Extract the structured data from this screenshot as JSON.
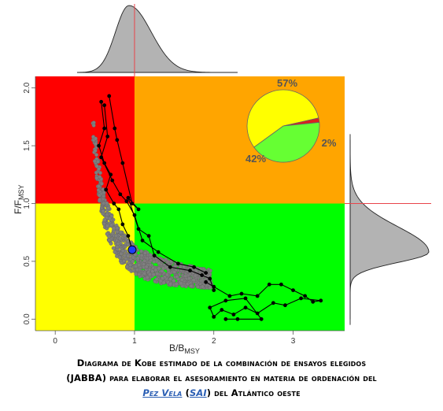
{
  "chart_data": {
    "type": "scatter",
    "title": "",
    "xlabel": "B/B",
    "xlabel_sub": "MSY",
    "ylabel": "F/F",
    "ylabel_sub": "MSY",
    "xlim": [
      -0.25,
      3.65
    ],
    "ylim": [
      -0.1,
      2.1
    ],
    "x_ticks": [
      "0",
      "1",
      "2",
      "3"
    ],
    "y_ticks": [
      "0.0",
      "0.5",
      "1.0",
      "1.5",
      "2.0"
    ],
    "grid": false,
    "quadrants": {
      "upper_left": "#ff0000",
      "upper_right": "#ffa500",
      "lower_left": "#ffff00",
      "lower_right": "#00ff00"
    },
    "reference_lines": {
      "x": 1.0,
      "y": 1.0,
      "color": "#e8444a"
    },
    "current_point": {
      "x": 0.97,
      "y": 0.6,
      "color": "#1a3cff"
    },
    "trajectory_a": [
      [
        0.58,
        1.88
      ],
      [
        0.62,
        1.65
      ],
      [
        0.55,
        1.5
      ],
      [
        0.62,
        1.35
      ],
      [
        0.7,
        1.25
      ],
      [
        0.64,
        1.12
      ],
      [
        0.74,
        1.0
      ],
      [
        0.8,
        0.95
      ],
      [
        0.85,
        0.82
      ],
      [
        0.92,
        0.72
      ],
      [
        0.97,
        0.6
      ]
    ],
    "trajectory_b": [
      [
        0.68,
        1.93
      ],
      [
        0.75,
        1.65
      ],
      [
        0.78,
        1.55
      ],
      [
        0.85,
        1.35
      ],
      [
        0.97,
        1.0
      ],
      [
        1.05,
        0.95
      ],
      [
        0.92,
        1.05
      ],
      [
        1.05,
        0.78
      ],
      [
        1.18,
        0.72
      ],
      [
        1.25,
        0.55
      ],
      [
        1.45,
        0.45
      ],
      [
        1.7,
        0.42
      ],
      [
        1.85,
        0.38
      ],
      [
        1.95,
        0.35
      ],
      [
        2.0,
        0.25
      ]
    ],
    "trajectory_c": [
      [
        0.62,
        1.85
      ],
      [
        0.66,
        1.58
      ],
      [
        0.58,
        1.4
      ],
      [
        0.72,
        1.2
      ],
      [
        0.82,
        1.08
      ],
      [
        0.9,
        1.02
      ],
      [
        1.0,
        0.9
      ],
      [
        1.1,
        0.68
      ],
      [
        1.3,
        0.58
      ],
      [
        1.55,
        0.48
      ],
      [
        1.75,
        0.45
      ],
      [
        1.9,
        0.4
      ]
    ],
    "trajectory_d": [
      [
        1.9,
        0.32
      ],
      [
        2.0,
        0.28
      ],
      [
        2.2,
        0.2
      ],
      [
        2.35,
        0.22
      ],
      [
        2.55,
        0.2
      ],
      [
        2.7,
        0.3
      ],
      [
        2.85,
        0.3
      ],
      [
        3.0,
        0.25
      ],
      [
        3.15,
        0.2
      ],
      [
        3.25,
        0.15
      ],
      [
        3.35,
        0.16
      ],
      [
        3.1,
        0.18
      ],
      [
        2.9,
        0.12
      ],
      [
        2.75,
        0.14
      ],
      [
        2.55,
        0.05
      ],
      [
        2.4,
        0.1
      ],
      [
        2.25,
        0.04
      ],
      [
        2.1,
        0.08
      ],
      [
        2.0,
        0.02
      ],
      [
        1.95,
        0.1
      ],
      [
        2.15,
        0.16
      ],
      [
        2.4,
        0.18
      ],
      [
        2.6,
        0.0
      ],
      [
        2.3,
        0.0
      ],
      [
        2.15,
        0.0
      ]
    ],
    "pie": {
      "slices": [
        {
          "value": 57,
          "label": "57%",
          "color": "#ffff00"
        },
        {
          "value": 2,
          "label": "2%",
          "color": "#dd1e1e"
        },
        {
          "value": 42,
          "label": "42%",
          "color": "#66ff33"
        }
      ]
    },
    "marginal_x": {
      "mode": 0.93,
      "spread": 0.28
    },
    "marginal_y": {
      "mode": 0.58,
      "spread": 0.15
    }
  },
  "caption": {
    "line1": "Diagrama de Kobe estimado de la combinación de ensayos elegidos",
    "line2": "(JABBA) para elaborar el asesoramiento en materia de ordenación del",
    "line3_link1": "Pez Vela",
    "line3_open": " (",
    "line3_link2": "SAI",
    "line3_rest": ") del Atlántico oeste"
  }
}
